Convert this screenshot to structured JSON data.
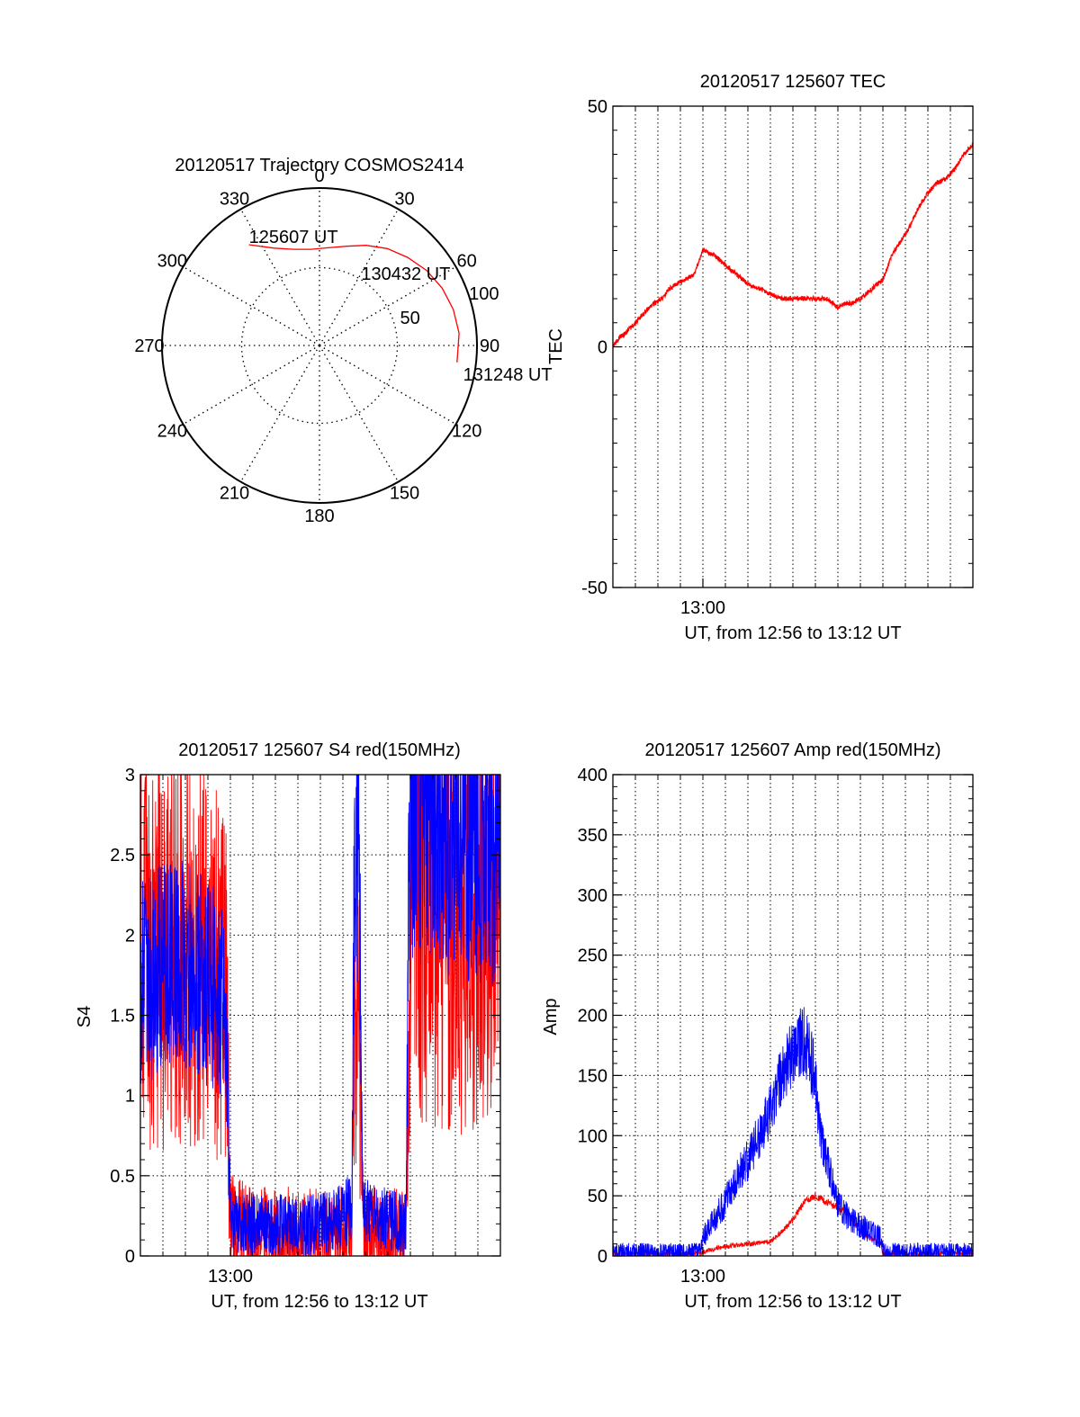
{
  "colors": {
    "red": "#ff0000",
    "blue": "#0000ff",
    "axis": "#000000",
    "grid": "#000000"
  },
  "chart_data": [
    {
      "id": "trajectory",
      "type": "polar",
      "title": "20120517 Trajectory COSMOS2414",
      "azimuth_labels": [
        "0",
        "30",
        "60",
        "90",
        "120",
        "150",
        "180",
        "210",
        "240",
        "270",
        "300",
        "330"
      ],
      "radial_ticks": [
        50,
        100
      ],
      "radial_tick_labels": [
        "50",
        "100"
      ],
      "radial_max": 100,
      "grid": "dotted",
      "track": [
        {
          "az": 325,
          "r": 79
        },
        {
          "az": 335,
          "r": 69
        },
        {
          "az": 345,
          "r": 64
        },
        {
          "az": 355,
          "r": 62
        },
        {
          "az": 5,
          "r": 63
        },
        {
          "az": 15,
          "r": 66
        },
        {
          "az": 25,
          "r": 71
        },
        {
          "az": 35,
          "r": 76
        },
        {
          "az": 45,
          "r": 80
        },
        {
          "az": 55,
          "r": 84
        },
        {
          "az": 65,
          "r": 87
        },
        {
          "az": 75,
          "r": 89
        },
        {
          "az": 85,
          "r": 90
        },
        {
          "az": 97,
          "r": 89
        }
      ],
      "annotations": [
        {
          "text": "125607 UT",
          "az": 325,
          "r": 79
        },
        {
          "text": "130432 UT",
          "az": 52,
          "r": 78
        },
        {
          "text": "131248 UT",
          "az": 98,
          "r": 92
        }
      ]
    },
    {
      "id": "tec",
      "type": "line",
      "title": "20120517 125607 TEC",
      "xlabel": "UT, from 12:56 to 13:12 UT",
      "ylabel": "TEC",
      "xlim": [
        0,
        16
      ],
      "ylim": [
        -50,
        50
      ],
      "yticks": [
        "-50",
        "0",
        "50"
      ],
      "xticks": [
        {
          "value": 4,
          "label": "13:00"
        }
      ],
      "grid": "vertical dotted each minute",
      "series": [
        {
          "color": "red",
          "x": [
            0,
            0.3,
            0.6,
            1.0,
            1.4,
            1.8,
            2.2,
            2.5,
            2.8,
            3.2,
            3.6,
            4.0,
            4.5,
            5.0,
            5.5,
            6.0,
            6.5,
            7.0,
            7.5,
            8.0,
            8.5,
            9.0,
            9.5,
            9.8,
            10.0,
            10.3,
            10.6,
            11.0,
            11.5,
            12.0,
            12.4,
            12.8,
            13.2,
            13.6,
            14.0,
            14.4,
            14.8,
            15.2,
            15.6,
            16.0
          ],
          "y": [
            0,
            2,
            3,
            5,
            7,
            9,
            10,
            12,
            13,
            14,
            15,
            20,
            19,
            17,
            15,
            13,
            12,
            11,
            10,
            10,
            10,
            10,
            10,
            9,
            8,
            9,
            9,
            10,
            12,
            14,
            19,
            22,
            25,
            29,
            32,
            34,
            35,
            37,
            40,
            42
          ],
          "noise": 0.5
        }
      ]
    },
    {
      "id": "s4",
      "type": "line",
      "title": "20120517 125607 S4 red(150MHz)",
      "xlabel": "UT, from 12:56 to 13:12 UT",
      "ylabel": "S4",
      "xlim": [
        0,
        16
      ],
      "ylim": [
        0,
        3
      ],
      "yticks": [
        "0",
        "0.5",
        "1",
        "1.5",
        "2",
        "2.5",
        "3"
      ],
      "xticks": [
        {
          "value": 4,
          "label": "13:00"
        }
      ],
      "grid": "dotted",
      "series": [
        {
          "color": "red",
          "x": [
            0,
            1,
            2,
            3,
            3.8,
            4.0,
            5,
            6,
            7,
            8,
            9,
            9.4,
            9.5,
            9.7,
            9.9,
            10,
            11,
            11.8,
            11.9,
            12,
            13,
            14,
            15,
            16
          ],
          "y": [
            1.9,
            1.9,
            1.9,
            1.8,
            1.7,
            0.18,
            0.13,
            0.12,
            0.13,
            0.12,
            0.13,
            0.13,
            1.2,
            1.5,
            0.13,
            0.13,
            0.12,
            0.12,
            1.3,
            2.4,
            2.2,
            2.1,
            2.2,
            2.2
          ],
          "noise": 0.8
        },
        {
          "color": "blue",
          "x": [
            0,
            1,
            2,
            3,
            3.8,
            4.0,
            5,
            6,
            7,
            8,
            9,
            9.4,
            9.5,
            9.7,
            9.9,
            10,
            11,
            11.8,
            11.9,
            12,
            13,
            14,
            15,
            16
          ],
          "y": [
            1.7,
            1.8,
            1.8,
            1.7,
            1.6,
            0.22,
            0.2,
            0.2,
            0.18,
            0.2,
            0.25,
            0.3,
            2.3,
            2.6,
            0.28,
            0.3,
            0.22,
            0.2,
            2.0,
            2.8,
            2.7,
            2.6,
            2.6,
            2.5
          ],
          "noise": 0.45
        }
      ]
    },
    {
      "id": "amp",
      "type": "line",
      "title": "20120517 125607 Amp red(150MHz)",
      "xlabel": "UT, from 12:56 to 13:12 UT",
      "ylabel": "Amp",
      "xlim": [
        0,
        16
      ],
      "ylim": [
        0,
        400
      ],
      "yticks": [
        "0",
        "50",
        "100",
        "150",
        "200",
        "250",
        "300",
        "350",
        "400"
      ],
      "xticks": [
        {
          "value": 4,
          "label": "13:00"
        }
      ],
      "grid": "dotted",
      "series": [
        {
          "color": "red",
          "x": [
            0,
            3.9,
            4.0,
            5.0,
            6.0,
            7.0,
            7.5,
            8.0,
            8.5,
            9.0,
            9.5,
            10.0,
            10.5,
            11.0,
            11.9,
            12.0,
            16.0
          ],
          "y": [
            2,
            2,
            3,
            8,
            10,
            12,
            20,
            30,
            45,
            50,
            45,
            40,
            35,
            20,
            10,
            2,
            2
          ],
          "noise": 6
        },
        {
          "color": "blue",
          "x": [
            0,
            3.9,
            4.0,
            4.5,
            5.0,
            5.5,
            6.0,
            6.5,
            7.0,
            7.5,
            8.0,
            8.5,
            9.0,
            9.2,
            9.5,
            10.0,
            10.5,
            11.0,
            11.5,
            11.9,
            12.0,
            16.0
          ],
          "y": [
            3,
            3,
            15,
            30,
            45,
            65,
            80,
            100,
            120,
            150,
            170,
            180,
            150,
            100,
            80,
            45,
            30,
            25,
            20,
            15,
            3,
            3
          ],
          "noise": 25
        }
      ]
    }
  ]
}
